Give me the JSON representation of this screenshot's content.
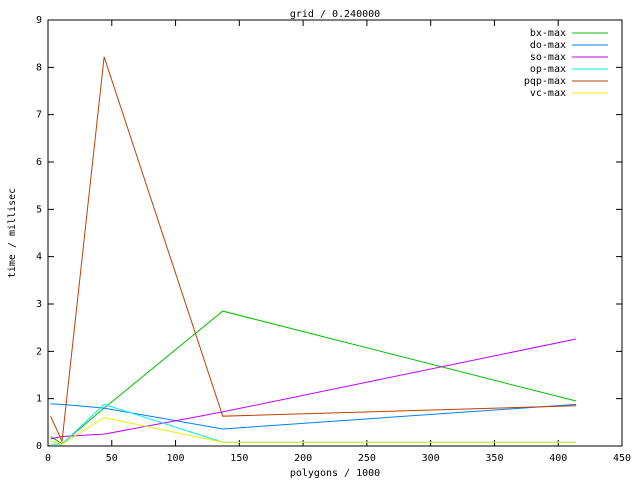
{
  "chart_data": {
    "type": "line",
    "title": "grid / 0.240000",
    "x_label": "polygons / 1000",
    "y_label": "time / millisec",
    "x": [
      2,
      11,
      44,
      137,
      414
    ],
    "series": [
      {
        "name": "bx-max",
        "color": "#00c000",
        "values": [
          0.2,
          0.05,
          0.8,
          2.85,
          0.95
        ]
      },
      {
        "name": "do-max",
        "color": "#0080ff",
        "values": [
          0.89,
          0.88,
          0.8,
          0.36,
          0.88
        ]
      },
      {
        "name": "so-max",
        "color": "#c000ff",
        "values": [
          0.15,
          0.2,
          0.25,
          0.72,
          2.26
        ]
      },
      {
        "name": "op-max",
        "color": "#00eeee",
        "values": [
          0.04,
          0.04,
          0.88,
          0.08,
          0.08
        ]
      },
      {
        "name": "pqp-max",
        "color": "#c04000",
        "values": [
          0.63,
          0.1,
          8.22,
          0.63,
          0.85
        ]
      },
      {
        "name": "vc-max",
        "color": "#eeee00",
        "values": [
          0.1,
          0.04,
          0.6,
          0.08,
          0.08
        ]
      }
    ],
    "xlim": [
      0,
      450
    ],
    "xticks": [
      0,
      50,
      100,
      150,
      200,
      250,
      300,
      350,
      400,
      450
    ],
    "ylim": [
      0,
      9
    ],
    "yticks": [
      0,
      1,
      2,
      3,
      4,
      5,
      6,
      7,
      8,
      9
    ],
    "legend": "top-right"
  }
}
